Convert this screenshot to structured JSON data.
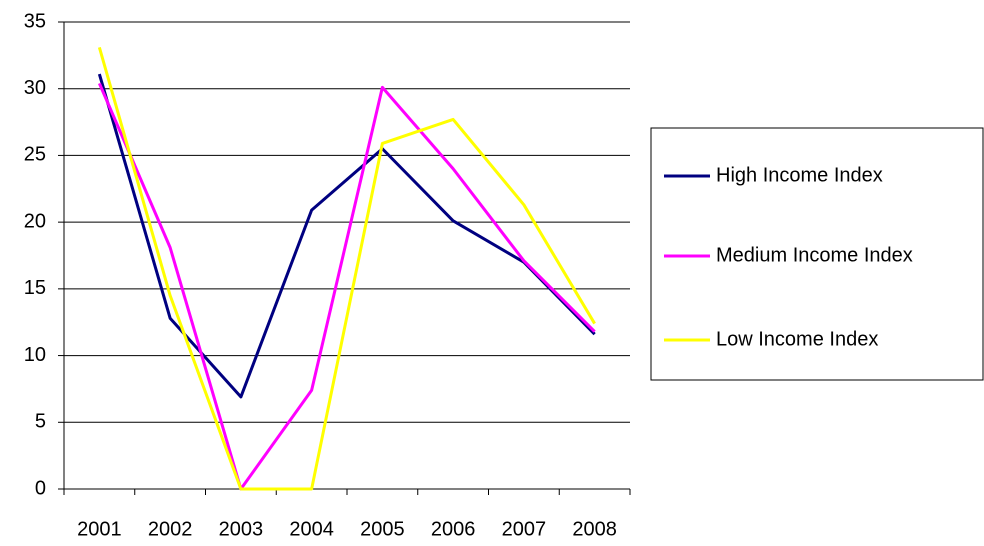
{
  "chart_data": {
    "type": "line",
    "categories": [
      "2001",
      "2002",
      "2003",
      "2004",
      "2005",
      "2006",
      "2007",
      "2008"
    ],
    "series": [
      {
        "name": "High Income Index",
        "color": "#000080",
        "values": [
          31.1,
          12.8,
          6.9,
          20.9,
          25.5,
          20.1,
          17.0,
          11.6
        ]
      },
      {
        "name": "Medium Income Index",
        "color": "#ff00ff",
        "values": [
          30.4,
          18.1,
          0,
          7.4,
          30.1,
          24.0,
          17.1,
          11.8
        ]
      },
      {
        "name": "Low Income Index",
        "color": "#ffff00",
        "values": [
          33.1,
          14.5,
          0,
          0,
          25.9,
          27.7,
          21.3,
          12.4
        ]
      }
    ],
    "ylim": [
      0,
      35
    ],
    "yticks": [
      0,
      5,
      10,
      15,
      20,
      25,
      30,
      35
    ],
    "grid": true,
    "legend": "right"
  }
}
